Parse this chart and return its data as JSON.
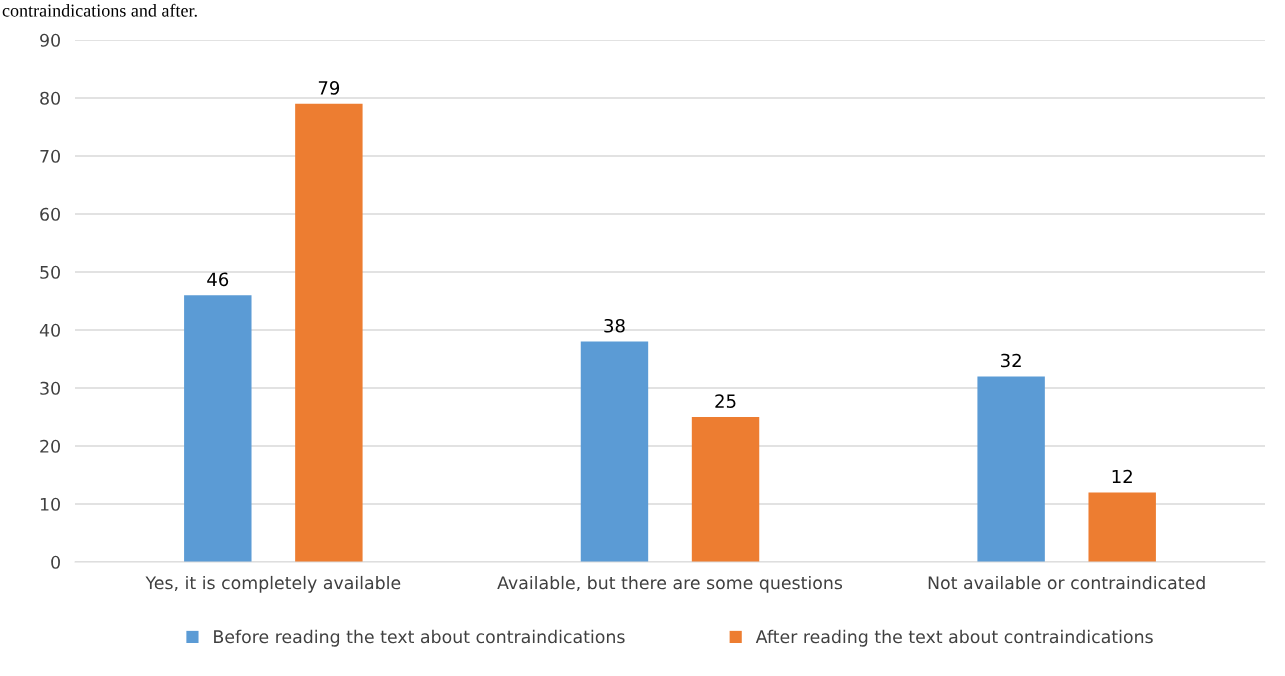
{
  "chart_data": {
    "type": "bar",
    "annotations": [
      "contraindications and after."
    ],
    "categories": [
      "Yes, it is completely available",
      "Available, but there are some questions",
      "Not available or contraindicated"
    ],
    "series": [
      {
        "name": "Before reading the text about contraindications",
        "color": "#5b9bd5",
        "values": [
          46,
          38,
          32
        ]
      },
      {
        "name": "After reading the text about contraindications",
        "color": "#ed7d31",
        "values": [
          79,
          25,
          12
        ]
      }
    ],
    "ylim": [
      0,
      90
    ],
    "yticks": [
      0,
      10,
      20,
      30,
      40,
      50,
      60,
      70,
      80,
      90
    ],
    "grid": "y",
    "legend": "bottom",
    "data_labels": true
  }
}
